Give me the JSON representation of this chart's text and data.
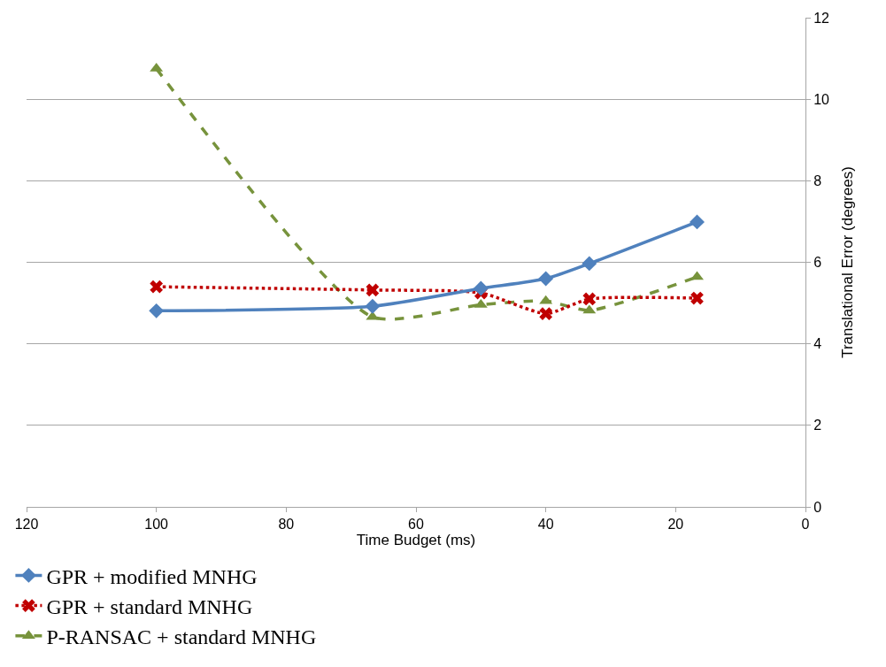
{
  "chart_data": {
    "type": "line",
    "xlabel": "Time Budget (ms)",
    "ylabel": "Translational Error (degrees)",
    "x": [
      100,
      66.7,
      50,
      40,
      33.3,
      16.7
    ],
    "xlim": [
      120,
      0
    ],
    "xticks": [
      120,
      100,
      80,
      60,
      40,
      20,
      0
    ],
    "ylim": [
      0,
      12
    ],
    "yticks": [
      0,
      2,
      4,
      6,
      8,
      10,
      12
    ],
    "grid": "y",
    "legend": "bottom left",
    "series": [
      {
        "name": "GPR + modified MNHG",
        "color": "#4f81bd",
        "marker": "diamond",
        "line_style": "solid",
        "values": [
          4.81,
          4.92,
          5.36,
          5.6,
          5.97,
          6.99
        ]
      },
      {
        "name": "GPR + standard MNHG",
        "color": "#c00000",
        "marker": "cross",
        "line_style": "dotted",
        "values": [
          5.4,
          5.32,
          5.25,
          4.74,
          5.1,
          5.12
        ]
      },
      {
        "name": "P-RANSAC + standard MNHG",
        "color": "#77933c",
        "marker": "triangle",
        "line_style": "dashed",
        "values": [
          10.75,
          4.66,
          4.96,
          5.05,
          4.82,
          5.64
        ]
      }
    ]
  }
}
